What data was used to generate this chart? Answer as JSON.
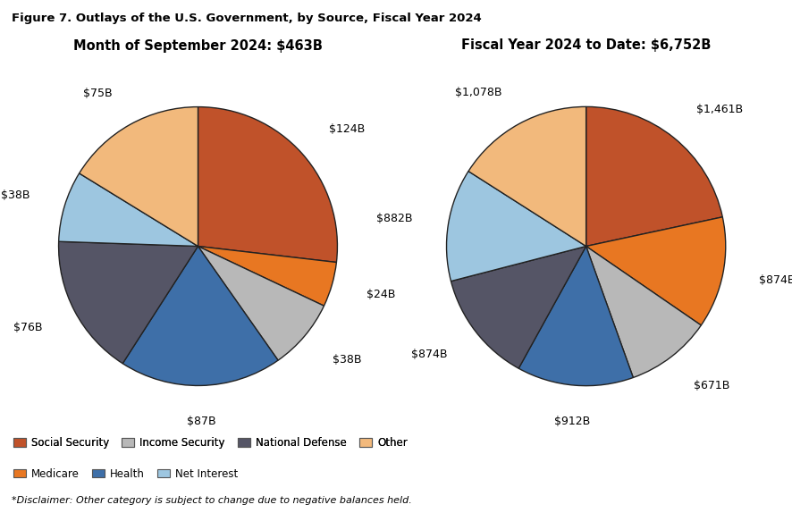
{
  "title": "Figure 7. Outlays of the U.S. Government, by Source, Fiscal Year 2024",
  "disclaimer": "*Disclaimer: Other category is subject to change due to negative balances held.",
  "left_title": "Month of September 2024: $463B",
  "right_title": "Fiscal Year 2024 to Date: $6,752B",
  "left_slices": [
    {
      "label": "Social Security",
      "value": 124,
      "color": "#C0522A"
    },
    {
      "label": "Medicare",
      "value": 24,
      "color": "#E87722"
    },
    {
      "label": "Income Security",
      "value": 38,
      "color": "#B8B8B8"
    },
    {
      "label": "Health",
      "value": 87,
      "color": "#3E6FA8"
    },
    {
      "label": "National Defense",
      "value": 76,
      "color": "#555566"
    },
    {
      "label": "Net Interest",
      "value": 38,
      "color": "#9DC6E0"
    },
    {
      "label": "Other",
      "value": 75,
      "color": "#F2B97C"
    }
  ],
  "right_slices": [
    {
      "label": "Social Security",
      "value": 1461,
      "color": "#C0522A"
    },
    {
      "label": "Medicare",
      "value": 874,
      "color": "#E87722"
    },
    {
      "label": "Income Security",
      "value": 671,
      "color": "#B8B8B8"
    },
    {
      "label": "Health",
      "value": 912,
      "color": "#3E6FA8"
    },
    {
      "label": "National Defense",
      "value": 874,
      "color": "#555566"
    },
    {
      "label": "Net Interest",
      "value": 882,
      "color": "#9DC6E0"
    },
    {
      "label": "Other",
      "value": 1078,
      "color": "#F2B97C"
    }
  ],
  "legend_row1": [
    {
      "label": "Social Security",
      "color": "#C0522A"
    },
    {
      "label": "Income Security",
      "color": "#B8B8B8"
    },
    {
      "label": "National Defense",
      "color": "#555566"
    },
    {
      "label": "Other",
      "color": "#F2B97C"
    }
  ],
  "legend_row2": [
    {
      "label": "Medicare",
      "color": "#E87722"
    },
    {
      "label": "Health",
      "color": "#3E6FA8"
    },
    {
      "label": "Net Interest",
      "color": "#9DC6E0"
    }
  ],
  "background_color": "#FFFFFF",
  "text_color": "#000000",
  "edge_color": "#222222"
}
